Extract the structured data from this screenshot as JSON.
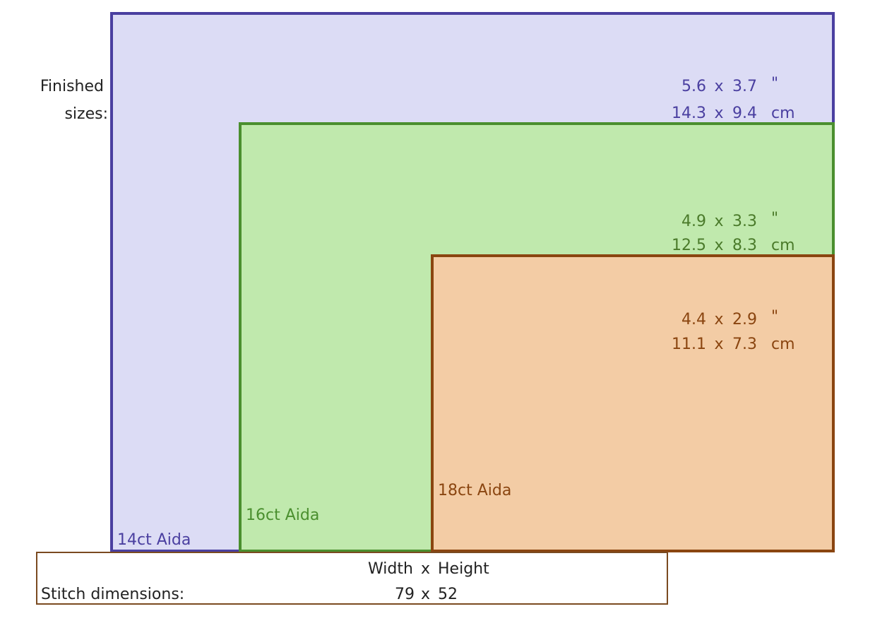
{
  "finished_label_line1": "Finished",
  "finished_label_line2": "sizes:",
  "fabrics": [
    {
      "label": "14ct Aida",
      "inch_w": "5.6",
      "inch_h": "3.7",
      "inch_unit": "\"",
      "cm_w": "14.3",
      "cm_h": "9.4",
      "cm_unit": "cm",
      "color": "#4a3fa0",
      "fill": "#dcdcf5"
    },
    {
      "label": "16ct Aida",
      "inch_w": "4.9",
      "inch_h": "3.3",
      "inch_unit": "\"",
      "cm_w": "12.5",
      "cm_h": "8.3",
      "cm_unit": "cm",
      "color": "#4a8f2e",
      "fill": "#c0e9ad"
    },
    {
      "label": "18ct Aida",
      "inch_w": "4.4",
      "inch_h": "2.9",
      "inch_unit": "\"",
      "cm_w": "11.1",
      "cm_h": "7.3",
      "cm_unit": "cm",
      "color": "#8a4510",
      "fill": "#f3cca5"
    }
  ],
  "times": "x",
  "stitch": {
    "width_label": "Width",
    "height_label": "Height",
    "row_label": "Stitch dimensions:",
    "width": "79",
    "height": "52"
  }
}
